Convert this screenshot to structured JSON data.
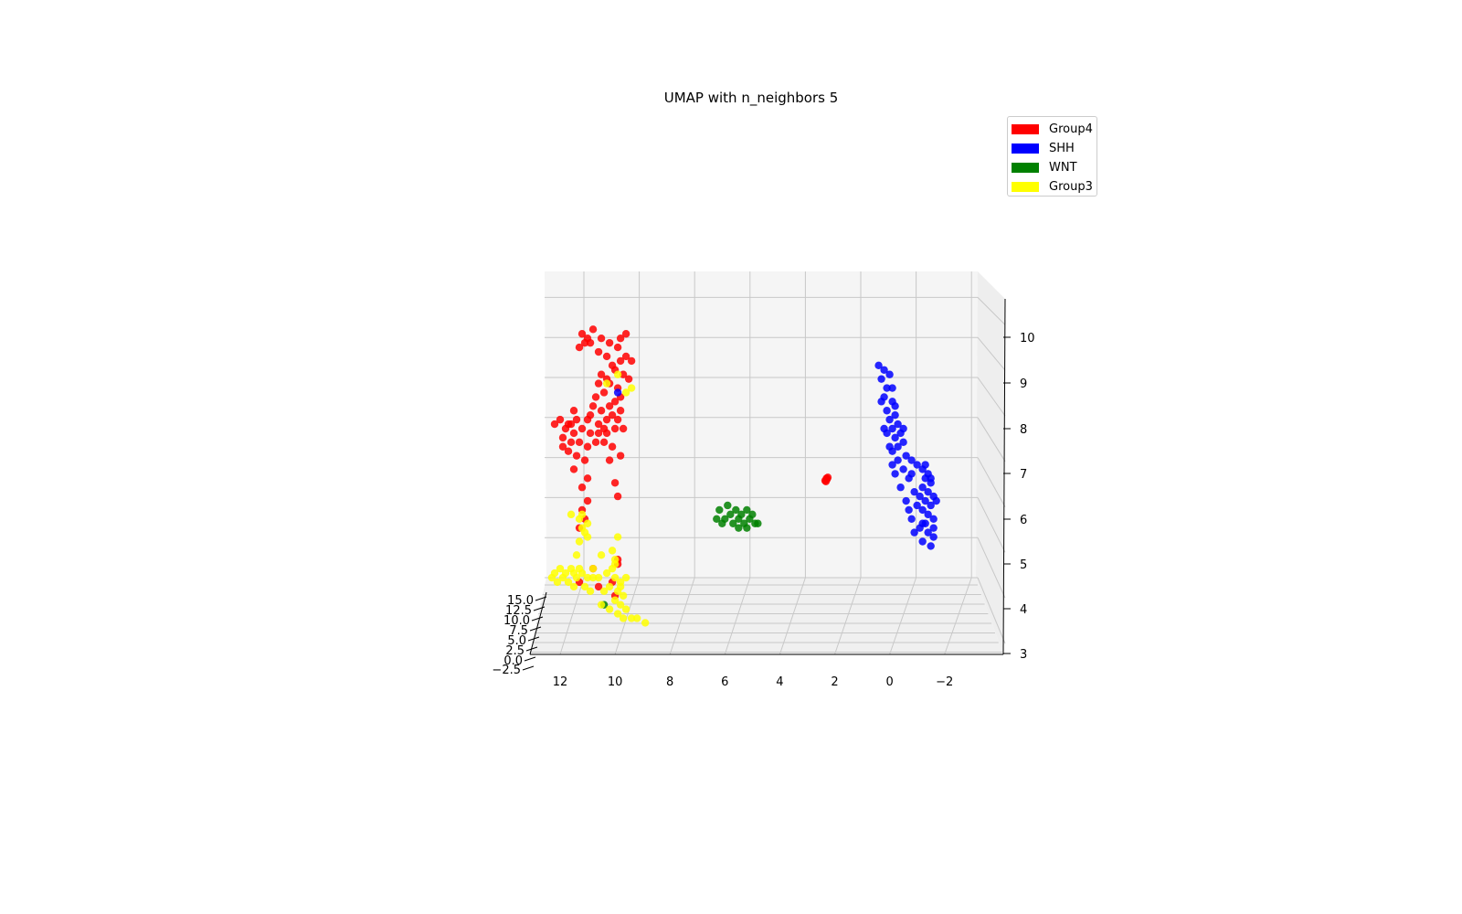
{
  "chart_data": {
    "type": "scatter",
    "projection": "3d",
    "title": "UMAP with n_neighbors 5",
    "xlabel": "",
    "ylabel": "",
    "zlabel": "",
    "xlim": [
      14.0,
      -4.0
    ],
    "zlim": [
      3.0,
      10.8
    ],
    "ylim": [
      -2.5,
      15.0
    ],
    "x_ticks": [
      "12",
      "10",
      "8",
      "6",
      "4",
      "2",
      "0",
      "−2"
    ],
    "z_ticks": [
      "3",
      "4",
      "5",
      "6",
      "7",
      "8",
      "9",
      "10"
    ],
    "y_ticks": [
      "−2.5",
      "0.0",
      "2.5",
      "5.0",
      "7.5",
      "10.0",
      "12.5",
      "15.0"
    ],
    "grid": true,
    "legend_position": "top-right",
    "series": [
      {
        "name": "Group4",
        "color": "#ff0000",
        "points": [
          [
            11.2,
            10.1
          ],
          [
            11.0,
            10.0
          ],
          [
            10.8,
            10.2
          ],
          [
            10.5,
            10.0
          ],
          [
            10.2,
            9.9
          ],
          [
            9.8,
            10.0
          ],
          [
            9.6,
            10.1
          ],
          [
            9.9,
            9.8
          ],
          [
            10.6,
            9.7
          ],
          [
            11.3,
            9.8
          ],
          [
            11.1,
            9.9
          ],
          [
            10.9,
            9.9
          ],
          [
            10.1,
            9.4
          ],
          [
            9.8,
            9.5
          ],
          [
            9.6,
            9.6
          ],
          [
            9.4,
            9.5
          ],
          [
            10.0,
            9.3
          ],
          [
            9.7,
            9.2
          ],
          [
            10.3,
            9.1
          ],
          [
            10.5,
            9.2
          ],
          [
            10.2,
            9.0
          ],
          [
            9.9,
            8.9
          ],
          [
            10.4,
            8.8
          ],
          [
            10.7,
            8.7
          ],
          [
            10.0,
            8.6
          ],
          [
            9.8,
            8.7
          ],
          [
            10.2,
            8.5
          ],
          [
            10.5,
            8.4
          ],
          [
            10.8,
            8.5
          ],
          [
            10.1,
            8.3
          ],
          [
            9.9,
            8.2
          ],
          [
            10.3,
            8.2
          ],
          [
            10.6,
            8.1
          ],
          [
            11.0,
            8.2
          ],
          [
            11.4,
            8.2
          ],
          [
            11.7,
            8.1
          ],
          [
            12.0,
            8.2
          ],
          [
            12.2,
            8.1
          ],
          [
            11.8,
            8.0
          ],
          [
            11.5,
            7.9
          ],
          [
            11.2,
            8.0
          ],
          [
            10.9,
            7.9
          ],
          [
            10.6,
            7.9
          ],
          [
            10.3,
            7.9
          ],
          [
            10.0,
            8.0
          ],
          [
            11.9,
            7.8
          ],
          [
            11.6,
            7.7
          ],
          [
            11.3,
            7.7
          ],
          [
            11.0,
            7.6
          ],
          [
            10.7,
            7.7
          ],
          [
            10.4,
            7.7
          ],
          [
            10.1,
            7.6
          ],
          [
            11.4,
            7.4
          ],
          [
            11.1,
            7.3
          ],
          [
            11.7,
            7.5
          ],
          [
            10.2,
            7.3
          ],
          [
            9.8,
            7.4
          ],
          [
            11.5,
            7.1
          ],
          [
            11.0,
            6.9
          ],
          [
            11.2,
            6.7
          ],
          [
            11.0,
            6.4
          ],
          [
            11.2,
            6.2
          ],
          [
            11.1,
            6.0
          ],
          [
            10.0,
            6.8
          ],
          [
            9.9,
            6.5
          ],
          [
            11.3,
            5.8
          ],
          [
            9.9,
            5.1
          ],
          [
            9.9,
            5.0
          ],
          [
            10.8,
            4.9
          ],
          [
            10.1,
            4.6
          ],
          [
            10.6,
            4.5
          ],
          [
            11.3,
            4.6
          ],
          [
            10.0,
            4.3
          ],
          [
            2.3,
            6.9
          ],
          [
            2.35,
            6.85
          ],
          [
            2.28,
            6.88
          ],
          [
            2.32,
            6.83
          ],
          [
            2.25,
            6.92
          ],
          [
            11.5,
            8.4
          ],
          [
            11.6,
            8.1
          ],
          [
            10.9,
            8.3
          ],
          [
            10.4,
            8.0
          ],
          [
            9.8,
            8.4
          ],
          [
            10.6,
            9.0
          ],
          [
            10.3,
            9.6
          ],
          [
            9.5,
            9.1
          ],
          [
            9.7,
            8.0
          ],
          [
            11.9,
            7.6
          ]
        ]
      },
      {
        "name": "SHH",
        "color": "#0000ff",
        "points": [
          [
            0.4,
            9.4
          ],
          [
            0.2,
            9.3
          ],
          [
            0.0,
            9.2
          ],
          [
            0.3,
            9.1
          ],
          [
            0.1,
            8.9
          ],
          [
            -0.1,
            8.9
          ],
          [
            0.2,
            8.7
          ],
          [
            -0.1,
            8.6
          ],
          [
            0.1,
            8.4
          ],
          [
            -0.2,
            8.3
          ],
          [
            0.0,
            8.2
          ],
          [
            -0.3,
            8.1
          ],
          [
            -0.1,
            8.0
          ],
          [
            -0.4,
            7.9
          ],
          [
            -0.2,
            7.8
          ],
          [
            0.1,
            7.9
          ],
          [
            -0.5,
            7.7
          ],
          [
            -0.3,
            7.6
          ],
          [
            -0.1,
            7.5
          ],
          [
            -0.6,
            7.4
          ],
          [
            -0.8,
            7.3
          ],
          [
            -1.0,
            7.2
          ],
          [
            -1.2,
            7.1
          ],
          [
            -1.4,
            7.0
          ],
          [
            -1.3,
            6.9
          ],
          [
            -1.5,
            6.8
          ],
          [
            -1.2,
            6.7
          ],
          [
            -1.4,
            6.6
          ],
          [
            -1.6,
            6.5
          ],
          [
            -1.3,
            6.4
          ],
          [
            -1.5,
            6.3
          ],
          [
            -1.2,
            6.2
          ],
          [
            -1.4,
            6.1
          ],
          [
            -1.6,
            6.0
          ],
          [
            -1.3,
            5.9
          ],
          [
            -1.1,
            5.8
          ],
          [
            -1.4,
            5.7
          ],
          [
            -1.6,
            5.6
          ],
          [
            -1.2,
            5.5
          ],
          [
            -1.5,
            5.4
          ],
          [
            -1.0,
            6.3
          ],
          [
            -0.8,
            6.0
          ],
          [
            -0.6,
            6.4
          ],
          [
            -0.9,
            6.6
          ],
          [
            -0.7,
            6.9
          ],
          [
            -0.5,
            7.1
          ],
          [
            -0.3,
            7.3
          ],
          [
            0.0,
            7.6
          ],
          [
            -0.8,
            7.0
          ],
          [
            -1.1,
            6.5
          ],
          [
            -0.9,
            5.7
          ],
          [
            -1.2,
            5.9
          ],
          [
            -0.7,
            6.2
          ],
          [
            -1.5,
            6.9
          ],
          [
            -1.7,
            6.4
          ],
          [
            -1.3,
            7.2
          ],
          [
            -0.2,
            7.0
          ],
          [
            -0.4,
            6.7
          ],
          [
            0.2,
            8.0
          ],
          [
            -0.2,
            8.5
          ],
          [
            0.3,
            8.6
          ],
          [
            -0.5,
            8.0
          ],
          [
            -0.1,
            7.2
          ],
          [
            -1.6,
            5.8
          ],
          [
            9.9,
            8.8
          ]
        ]
      },
      {
        "name": "WNT",
        "color": "#008000",
        "points": [
          [
            6.0,
            6.0
          ],
          [
            5.8,
            6.1
          ],
          [
            6.2,
            6.2
          ],
          [
            5.5,
            6.0
          ],
          [
            5.6,
            6.2
          ],
          [
            5.3,
            5.9
          ],
          [
            5.4,
            6.1
          ],
          [
            5.1,
            6.0
          ],
          [
            5.2,
            5.8
          ],
          [
            4.9,
            5.9
          ],
          [
            5.0,
            6.1
          ],
          [
            5.7,
            5.9
          ],
          [
            6.3,
            6.0
          ],
          [
            5.9,
            6.3
          ],
          [
            5.2,
            6.2
          ],
          [
            5.5,
            5.8
          ],
          [
            4.8,
            5.9
          ],
          [
            6.1,
            5.9
          ],
          [
            10.4,
            4.1
          ]
        ]
      },
      {
        "name": "Group3",
        "color": "#ffff00",
        "points": [
          [
            11.2,
            6.1
          ],
          [
            11.0,
            5.9
          ],
          [
            11.1,
            5.7
          ],
          [
            11.3,
            5.5
          ],
          [
            11.0,
            5.6
          ],
          [
            11.2,
            5.8
          ],
          [
            11.4,
            5.2
          ],
          [
            11.6,
            4.9
          ],
          [
            11.8,
            4.8
          ],
          [
            12.0,
            4.9
          ],
          [
            12.2,
            4.8
          ],
          [
            11.9,
            4.7
          ],
          [
            12.1,
            4.6
          ],
          [
            11.7,
            4.6
          ],
          [
            11.4,
            4.7
          ],
          [
            11.2,
            4.8
          ],
          [
            11.0,
            4.7
          ],
          [
            10.8,
            4.7
          ],
          [
            11.5,
            4.5
          ],
          [
            11.1,
            4.5
          ],
          [
            10.9,
            4.4
          ],
          [
            10.6,
            4.7
          ],
          [
            10.3,
            4.8
          ],
          [
            10.0,
            4.7
          ],
          [
            9.8,
            4.6
          ],
          [
            9.6,
            4.7
          ],
          [
            10.2,
            4.5
          ],
          [
            9.9,
            4.4
          ],
          [
            9.7,
            4.3
          ],
          [
            10.0,
            4.2
          ],
          [
            9.8,
            4.1
          ],
          [
            10.2,
            4.0
          ],
          [
            9.9,
            3.9
          ],
          [
            9.6,
            4.0
          ],
          [
            9.4,
            3.8
          ],
          [
            9.7,
            3.8
          ],
          [
            9.2,
            3.8
          ],
          [
            8.9,
            3.7
          ],
          [
            10.1,
            5.3
          ],
          [
            10.0,
            5.1
          ],
          [
            10.5,
            5.2
          ],
          [
            11.3,
            6.0
          ],
          [
            9.9,
            5.6
          ],
          [
            10.5,
            4.1
          ],
          [
            11.6,
            6.1
          ],
          [
            11.3,
            4.9
          ],
          [
            12.3,
            4.7
          ],
          [
            11.5,
            4.8
          ],
          [
            9.9,
            9.2
          ],
          [
            9.6,
            8.8
          ],
          [
            9.4,
            8.9
          ],
          [
            10.3,
            9.0
          ],
          [
            10.0,
            5.0
          ],
          [
            10.8,
            4.9
          ],
          [
            10.1,
            4.9
          ],
          [
            9.8,
            4.5
          ],
          [
            10.4,
            4.4
          ]
        ]
      }
    ]
  }
}
